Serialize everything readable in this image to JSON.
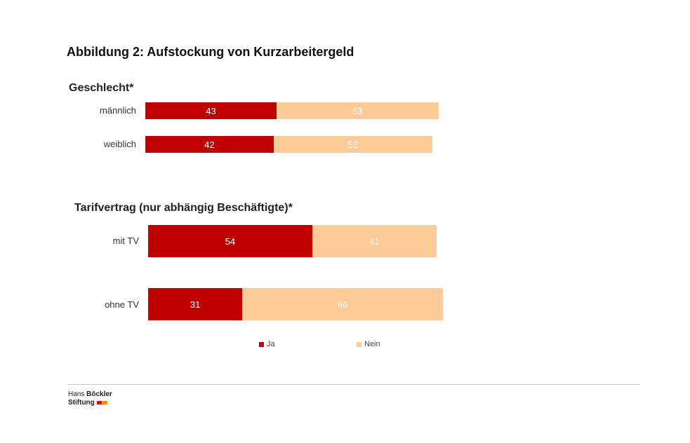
{
  "title": "Abbildung 2: Aufstockung von Kurzarbeitergeld",
  "colors": {
    "ja": "#c00000",
    "nein": "#fdcb97"
  },
  "chart_data": [
    {
      "type": "bar",
      "orientation": "horizontal",
      "stacked": true,
      "title": "Geschlecht*",
      "categories": [
        "männlich",
        "weiblich"
      ],
      "series": [
        {
          "name": "Ja",
          "values": [
            43,
            42
          ]
        },
        {
          "name": "Nein",
          "values": [
            53,
            52
          ]
        }
      ]
    },
    {
      "type": "bar",
      "orientation": "horizontal",
      "stacked": true,
      "title": "Tarifvertrag (nur abhängig Beschäftigte)*",
      "categories": [
        "mit TV",
        "ohne TV"
      ],
      "series": [
        {
          "name": "Ja",
          "values": [
            54,
            31
          ]
        },
        {
          "name": "Nein",
          "values": [
            41,
            66
          ]
        }
      ]
    }
  ],
  "legend": {
    "ja": "Ja",
    "nein": "Nein",
    "position": "bottom"
  },
  "footer": {
    "logo_line1_normal": "Hans ",
    "logo_line1_bold": "Böckler",
    "logo_line2": "Stiftung"
  }
}
